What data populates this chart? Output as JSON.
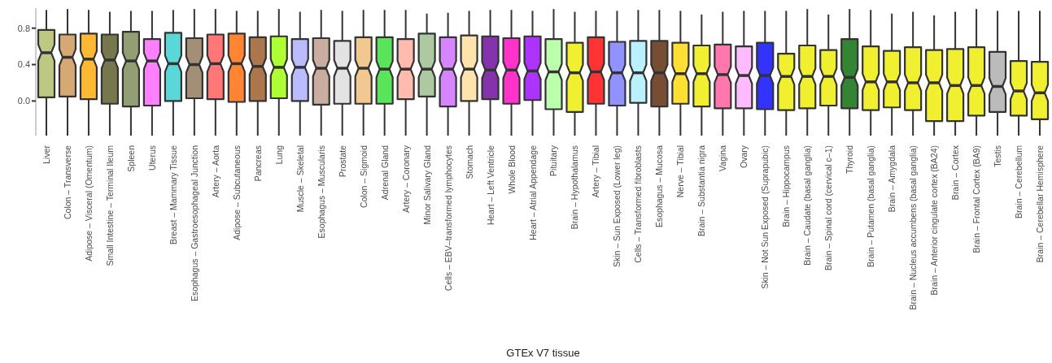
{
  "chart_data": {
    "type": "box",
    "xlabel": "GTEx V7 tissue",
    "categories": [
      "Liver",
      "Colon – Transverse",
      "Adipose – Visceral (Omentum)",
      "Small Intestine – Terminal Ileum",
      "Spleen",
      "Uterus",
      "Breast – Mammary Tissue",
      "Esophagus – Gastroesophageal Junction",
      "Artery – Aorta",
      "Adipose – Subcutaneous",
      "Pancreas",
      "Lung",
      "Muscle – Skeletal",
      "Esophagus – Muscularis",
      "Prostate",
      "Colon – Sigmoid",
      "Adrenal Gland",
      "Artery – Coronary",
      "Minor Salivary Gland",
      "Cells – EBV–transformed lymphocytes",
      "Stomach",
      "Heart – Left Ventricle",
      "Whole Blood",
      "Heart – Atrial Appendage",
      "Pituitary",
      "Brain – Hypothalamus",
      "Artery – Tibial",
      "Skin – Sun Exposed (Lower leg)",
      "Cells – Transformed fibroblasts",
      "Esophagus – Mucosa",
      "Nerve – Tibial",
      "Brain – Substantia nigra",
      "Vagina",
      "Ovary",
      "Skin – Not Sun Exposed (Suprapubic)",
      "Brain – Hippocampus",
      "Brain – Caudate (basal ganglia)",
      "Brain – Spinal cord (cervical c–1)",
      "Thyroid",
      "Brain – Putamen (basal ganglia)",
      "Brain – Amygdala",
      "Brain – Nucleus accumbens (basal ganglia)",
      "Brain – Anterior cingulate cortex (BA24)",
      "Brain – Cortex",
      "Brain – Frontal Cortex (BA9)",
      "Testis",
      "Brain – Cerebellum",
      "Brain – Cerebellar Hemisphere"
    ],
    "colors": [
      "#bfc882",
      "#d6a873",
      "#ffb833",
      "#77774d",
      "#939f73",
      "#ff80ff",
      "#5ad7d7",
      "#a38f75",
      "#ff7777",
      "#ff8533",
      "#ad774d",
      "#adff33",
      "#bbbbff",
      "#c9ada0",
      "#e3e3e3",
      "#f0c890",
      "#5ae45a",
      "#ffbbad",
      "#adc9a0",
      "#d685ff",
      "#ffe3ad",
      "#8533ad",
      "#ff33c9",
      "#ad33ff",
      "#bbffad",
      "#f0f030",
      "#ff3333",
      "#9292ff",
      "#bbf0ff",
      "#774e33",
      "#ffdf33",
      "#f0f030",
      "#ff77ad",
      "#ffbbff",
      "#3333ff",
      "#f0f030",
      "#f0f030",
      "#f0f030",
      "#338533",
      "#f0f030",
      "#f0f030",
      "#f0f030",
      "#f0f030",
      "#f0f030",
      "#f0f030",
      "#bbbbbb",
      "#f0f030",
      "#f0f030"
    ],
    "boxes": [
      {
        "low": -0.38,
        "q1": 0.04,
        "median": 0.53,
        "q3": 0.78,
        "high": 1.0
      },
      {
        "low": -0.38,
        "q1": 0.05,
        "median": 0.48,
        "q3": 0.73,
        "high": 1.01
      },
      {
        "low": -0.38,
        "q1": 0.02,
        "median": 0.46,
        "q3": 0.74,
        "high": 1.0
      },
      {
        "low": -0.38,
        "q1": -0.03,
        "median": 0.45,
        "q3": 0.73,
        "high": 0.98
      },
      {
        "low": -0.38,
        "q1": -0.06,
        "median": 0.44,
        "q3": 0.76,
        "high": 0.99
      },
      {
        "low": -0.38,
        "q1": -0.05,
        "median": 0.44,
        "q3": 0.68,
        "high": 0.99
      },
      {
        "low": -0.38,
        "q1": 0.0,
        "median": 0.41,
        "q3": 0.75,
        "high": 1.0
      },
      {
        "low": -0.38,
        "q1": 0.03,
        "median": 0.4,
        "q3": 0.69,
        "high": 1.01
      },
      {
        "low": -0.38,
        "q1": 0.02,
        "median": 0.41,
        "q3": 0.73,
        "high": 1.01
      },
      {
        "low": -0.38,
        "q1": -0.01,
        "median": 0.41,
        "q3": 0.74,
        "high": 0.99
      },
      {
        "low": -0.38,
        "q1": 0.0,
        "median": 0.38,
        "q3": 0.7,
        "high": 0.99
      },
      {
        "low": -0.38,
        "q1": 0.03,
        "median": 0.37,
        "q3": 0.71,
        "high": 1.01
      },
      {
        "low": -0.38,
        "q1": 0.0,
        "median": 0.37,
        "q3": 0.68,
        "high": 0.98
      },
      {
        "low": -0.38,
        "q1": -0.04,
        "median": 0.36,
        "q3": 0.69,
        "high": 1.0
      },
      {
        "low": -0.38,
        "q1": -0.03,
        "median": 0.36,
        "q3": 0.66,
        "high": 0.99
      },
      {
        "low": -0.38,
        "q1": -0.03,
        "median": 0.36,
        "q3": 0.7,
        "high": 1.0
      },
      {
        "low": -0.38,
        "q1": -0.03,
        "median": 0.35,
        "q3": 0.7,
        "high": 1.0
      },
      {
        "low": -0.38,
        "q1": 0.02,
        "median": 0.35,
        "q3": 0.68,
        "high": 1.0
      },
      {
        "low": -0.38,
        "q1": 0.05,
        "median": 0.35,
        "q3": 0.74,
        "high": 0.96
      },
      {
        "low": -0.38,
        "q1": -0.06,
        "median": 0.35,
        "q3": 0.7,
        "high": 0.97
      },
      {
        "low": -0.38,
        "q1": 0.0,
        "median": 0.35,
        "q3": 0.72,
        "high": 0.99
      },
      {
        "low": -0.38,
        "q1": 0.02,
        "median": 0.34,
        "q3": 0.71,
        "high": 1.0
      },
      {
        "low": -0.38,
        "q1": -0.03,
        "median": 0.34,
        "q3": 0.69,
        "high": 1.0
      },
      {
        "low": -0.38,
        "q1": 0.01,
        "median": 0.33,
        "q3": 0.71,
        "high": 0.99
      },
      {
        "low": -0.38,
        "q1": -0.09,
        "median": 0.32,
        "q3": 0.68,
        "high": 1.01
      },
      {
        "low": -0.38,
        "q1": -0.12,
        "median": 0.31,
        "q3": 0.64,
        "high": 0.98
      },
      {
        "low": -0.38,
        "q1": -0.03,
        "median": 0.32,
        "q3": 0.7,
        "high": 0.99
      },
      {
        "low": -0.38,
        "q1": -0.05,
        "median": 0.31,
        "q3": 0.65,
        "high": 0.99
      },
      {
        "low": -0.38,
        "q1": -0.02,
        "median": 0.31,
        "q3": 0.66,
        "high": 1.0
      },
      {
        "low": -0.38,
        "q1": -0.06,
        "median": 0.31,
        "q3": 0.66,
        "high": 1.0
      },
      {
        "low": -0.38,
        "q1": -0.03,
        "median": 0.3,
        "q3": 0.64,
        "high": 0.99
      },
      {
        "low": -0.38,
        "q1": -0.06,
        "median": 0.3,
        "q3": 0.61,
        "high": 0.95
      },
      {
        "low": -0.38,
        "q1": -0.08,
        "median": 0.29,
        "q3": 0.62,
        "high": 0.98
      },
      {
        "low": -0.38,
        "q1": -0.08,
        "median": 0.28,
        "q3": 0.6,
        "high": 0.99
      },
      {
        "low": -0.38,
        "q1": -0.09,
        "median": 0.28,
        "q3": 0.64,
        "high": 0.99
      },
      {
        "low": -0.38,
        "q1": -0.1,
        "median": 0.27,
        "q3": 0.52,
        "high": 0.99
      },
      {
        "low": -0.38,
        "q1": -0.08,
        "median": 0.27,
        "q3": 0.61,
        "high": 1.01
      },
      {
        "low": -0.38,
        "q1": -0.05,
        "median": 0.27,
        "q3": 0.56,
        "high": 0.95
      },
      {
        "low": -0.38,
        "q1": -0.08,
        "median": 0.26,
        "q3": 0.68,
        "high": 1.01
      },
      {
        "low": -0.38,
        "q1": -0.1,
        "median": 0.21,
        "q3": 0.6,
        "high": 1.0
      },
      {
        "low": -0.38,
        "q1": -0.07,
        "median": 0.21,
        "q3": 0.55,
        "high": 0.96
      },
      {
        "low": -0.38,
        "q1": -0.1,
        "median": 0.2,
        "q3": 0.59,
        "high": 0.98
      },
      {
        "low": -0.38,
        "q1": -0.22,
        "median": 0.2,
        "q3": 0.56,
        "high": 0.94
      },
      {
        "low": -0.38,
        "q1": -0.22,
        "median": 0.17,
        "q3": 0.57,
        "high": 0.98
      },
      {
        "low": -0.38,
        "q1": -0.16,
        "median": 0.17,
        "q3": 0.59,
        "high": 1.01
      },
      {
        "low": -0.38,
        "q1": -0.12,
        "median": 0.16,
        "q3": 0.54,
        "high": 0.99
      },
      {
        "low": -0.38,
        "q1": -0.16,
        "median": 0.11,
        "q3": 0.44,
        "high": 0.99
      },
      {
        "low": -0.38,
        "q1": -0.2,
        "median": 0.09,
        "q3": 0.43,
        "high": 0.99
      }
    ],
    "ylim": [
      -0.38,
      1.02
    ],
    "yticks": [
      {
        "value": 0,
        "label": "0.0"
      },
      {
        "value": 0.4,
        "label": "0.4"
      },
      {
        "value": 0.8,
        "label": "0.8"
      }
    ],
    "grid": false,
    "legend": false
  }
}
